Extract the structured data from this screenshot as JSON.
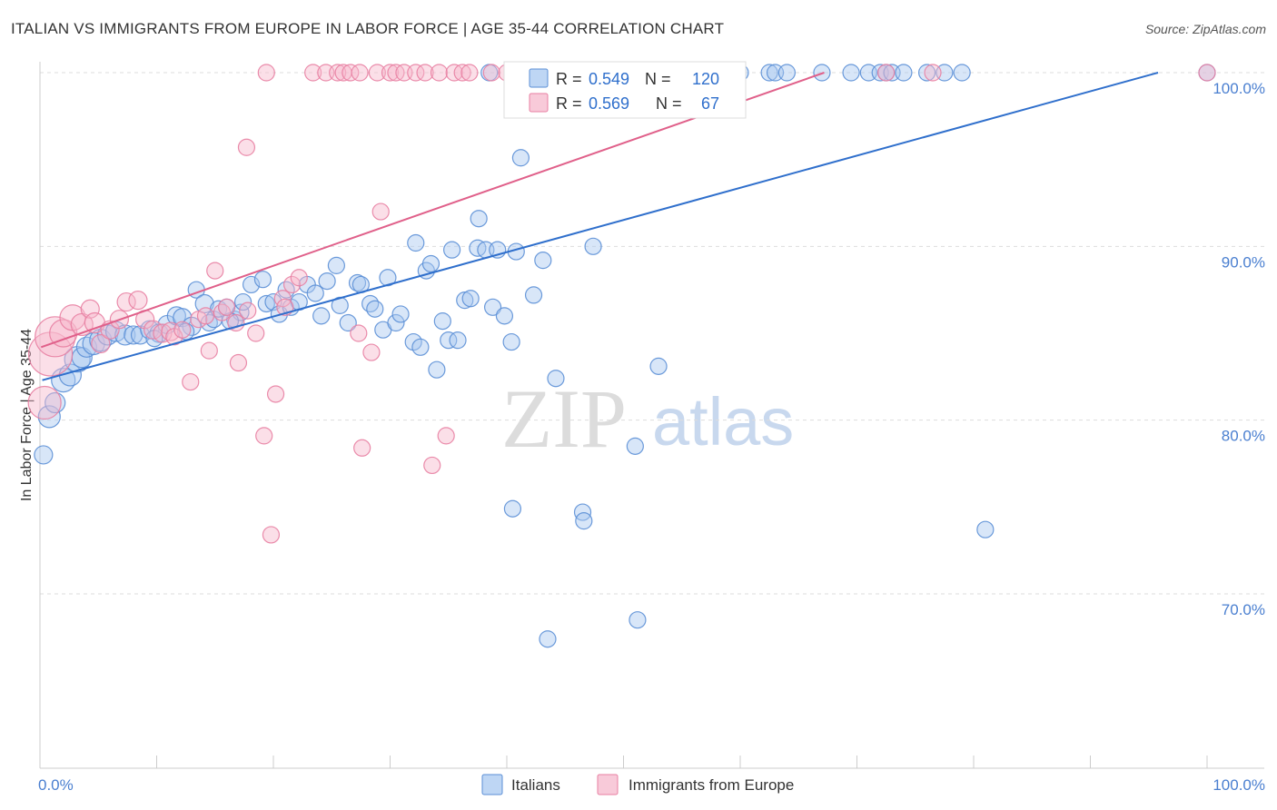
{
  "title": "ITALIAN VS IMMIGRANTS FROM EUROPE IN LABOR FORCE | AGE 35-44 CORRELATION CHART",
  "source": "Source: ZipAtlas.com",
  "watermark": {
    "zip": "ZIP",
    "atlas": "atlas"
  },
  "colors": {
    "blue_fill": "#a8c8f0",
    "blue_stroke": "#5b8fd6",
    "blue_line": "#2f6fcc",
    "pink_fill": "#f6b8cc",
    "pink_stroke": "#e87fa2",
    "pink_line": "#e0608a",
    "tick_text": "#4a7fd0",
    "grid": "#dddddd"
  },
  "legend": {
    "rows": [
      {
        "r_label": "R =",
        "r_value": "0.549",
        "n_label": "N =",
        "n_value": "120",
        "series": "blue"
      },
      {
        "r_label": "R =",
        "r_value": "0.569",
        "n_label": "N =",
        "n_value": "67",
        "series": "pink"
      }
    ]
  },
  "chart_data": {
    "type": "scatter",
    "title": "ITALIAN VS IMMIGRANTS FROM EUROPE IN LABOR FORCE | AGE 35-44 CORRELATION CHART",
    "xlabel": "",
    "ylabel": "In Labor Force | Age 35-44",
    "xlim": [
      0,
      100
    ],
    "ylim": [
      60,
      101.8
    ],
    "x_tick_labels": [
      {
        "value": 0,
        "label": "0.0%"
      },
      {
        "value": 100,
        "label": "100.0%"
      }
    ],
    "y_ticks": [
      {
        "value": 100,
        "label": "100.0%"
      },
      {
        "value": 90,
        "label": "90.0%"
      },
      {
        "value": 80,
        "label": "80.0%"
      },
      {
        "value": 70,
        "label": "70.0%"
      }
    ],
    "series": [
      {
        "name": "Italians",
        "color": "blue",
        "trend": {
          "x0": 0.2,
          "y0": 82.3,
          "x1": 95.8,
          "y1": 100.0
        },
        "points": [
          [
            0.3,
            78.0,
            10
          ],
          [
            0.8,
            80.2,
            12
          ],
          [
            1.3,
            81.0,
            11
          ],
          [
            2.0,
            82.3,
            13
          ],
          [
            2.6,
            82.6,
            12
          ],
          [
            3.2,
            83.5,
            14
          ],
          [
            3.6,
            83.6,
            11
          ],
          [
            4.0,
            84.2,
            11
          ],
          [
            4.6,
            84.4,
            12
          ],
          [
            5.2,
            84.6,
            12
          ],
          [
            5.8,
            84.9,
            11
          ],
          [
            6.5,
            85.1,
            11
          ],
          [
            7.3,
            84.9,
            11
          ],
          [
            8.0,
            84.9,
            10
          ],
          [
            8.6,
            84.9,
            10
          ],
          [
            9.4,
            85.2,
            10
          ],
          [
            10.2,
            85.0,
            10
          ],
          [
            10.9,
            85.5,
            10
          ],
          [
            11.7,
            86.0,
            10
          ],
          [
            12.2,
            85.9,
            10
          ],
          [
            13.0,
            85.4,
            10
          ],
          [
            13.4,
            87.5,
            9
          ],
          [
            14.1,
            86.7,
            10
          ],
          [
            14.5,
            85.6,
            9
          ],
          [
            14.9,
            85.8,
            9
          ],
          [
            15.3,
            86.4,
            9
          ],
          [
            16.0,
            86.5,
            9
          ],
          [
            16.7,
            85.8,
            9
          ],
          [
            17.2,
            86.2,
            9
          ],
          [
            17.4,
            86.8,
            9
          ],
          [
            18.1,
            87.8,
            9
          ],
          [
            19.1,
            88.1,
            9
          ],
          [
            19.4,
            86.7,
            9
          ],
          [
            20.0,
            86.8,
            9
          ],
          [
            20.5,
            86.1,
            9
          ],
          [
            21.1,
            87.5,
            9
          ],
          [
            21.5,
            86.5,
            9
          ],
          [
            22.2,
            86.8,
            9
          ],
          [
            22.9,
            87.8,
            9
          ],
          [
            23.6,
            87.3,
            9
          ],
          [
            24.1,
            86.0,
            9
          ],
          [
            24.6,
            88.0,
            9
          ],
          [
            25.4,
            88.9,
            9
          ],
          [
            25.7,
            86.6,
            9
          ],
          [
            26.4,
            85.6,
            9
          ],
          [
            27.2,
            87.9,
            9
          ],
          [
            27.5,
            87.8,
            9
          ],
          [
            28.3,
            86.7,
            9
          ],
          [
            28.7,
            86.4,
            9
          ],
          [
            29.4,
            85.2,
            9
          ],
          [
            29.8,
            88.2,
            9
          ],
          [
            30.5,
            85.6,
            9
          ],
          [
            30.9,
            86.1,
            9
          ],
          [
            32.0,
            84.5,
            9
          ],
          [
            32.2,
            90.2,
            9
          ],
          [
            32.6,
            84.2,
            9
          ],
          [
            33.1,
            88.6,
            9
          ],
          [
            33.5,
            89.0,
            9
          ],
          [
            34.0,
            82.9,
            9
          ],
          [
            34.5,
            85.7,
            9
          ],
          [
            35.0,
            84.6,
            9
          ],
          [
            35.3,
            89.8,
            9
          ],
          [
            35.8,
            84.6,
            9
          ],
          [
            36.4,
            86.9,
            9
          ],
          [
            36.9,
            87.0,
            9
          ],
          [
            37.6,
            91.6,
            9
          ],
          [
            37.5,
            89.9,
            9
          ],
          [
            38.2,
            89.8,
            9
          ],
          [
            38.8,
            86.5,
            9
          ],
          [
            39.2,
            89.8,
            9
          ],
          [
            39.8,
            86.0,
            9
          ],
          [
            40.4,
            84.5,
            9
          ],
          [
            40.8,
            89.7,
            9
          ],
          [
            41.2,
            95.1,
            9
          ],
          [
            42.3,
            87.2,
            9
          ],
          [
            43.1,
            89.2,
            9
          ],
          [
            44.2,
            82.4,
            9
          ],
          [
            44.0,
            100.0,
            9
          ],
          [
            45.0,
            100.0,
            9
          ],
          [
            46.0,
            100.0,
            9
          ],
          [
            46.5,
            74.7,
            9
          ],
          [
            46.6,
            74.2,
            9
          ],
          [
            47.4,
            90.0,
            9
          ],
          [
            48.5,
            100.0,
            9
          ],
          [
            49.5,
            100.0,
            9
          ],
          [
            50.0,
            100.0,
            9
          ],
          [
            51.0,
            78.5,
            9
          ],
          [
            51.2,
            68.5,
            9
          ],
          [
            52.0,
            100.0,
            9
          ],
          [
            53.0,
            83.1,
            9
          ],
          [
            53.5,
            100.0,
            9
          ],
          [
            54.5,
            100.0,
            9
          ],
          [
            55.5,
            100.0,
            9
          ],
          [
            56.5,
            100.0,
            9
          ],
          [
            57.5,
            100.0,
            9
          ],
          [
            58.5,
            100.0,
            9
          ],
          [
            60.0,
            100.0,
            9
          ],
          [
            62.5,
            100.0,
            9
          ],
          [
            63.0,
            100.0,
            9
          ],
          [
            64.0,
            100.0,
            9
          ],
          [
            67.0,
            100.0,
            9
          ],
          [
            69.5,
            100.0,
            9
          ],
          [
            71.0,
            100.0,
            9
          ],
          [
            72.0,
            100.0,
            9
          ],
          [
            72.5,
            100.0,
            9
          ],
          [
            73.0,
            100.0,
            9
          ],
          [
            74.0,
            100.0,
            9
          ],
          [
            76.0,
            100.0,
            9
          ],
          [
            77.5,
            100.0,
            9
          ],
          [
            79.0,
            100.0,
            9
          ],
          [
            81.0,
            73.7,
            9
          ],
          [
            100.0,
            100.0,
            9
          ],
          [
            38.5,
            100.0,
            9
          ],
          [
            40.5,
            74.9,
            9
          ],
          [
            43.5,
            67.4,
            9
          ],
          [
            12.5,
            85.1,
            9
          ],
          [
            16.3,
            85.7,
            9
          ],
          [
            9.8,
            84.7,
            9
          ]
        ]
      },
      {
        "name": "Immigrants from Europe",
        "color": "pink",
        "trend": {
          "x0": 0.1,
          "y0": 84.2,
          "x1": 67.2,
          "y1": 100.0
        },
        "points": [
          [
            0.4,
            81.0,
            18
          ],
          [
            0.9,
            83.8,
            24
          ],
          [
            1.3,
            84.8,
            22
          ],
          [
            2.0,
            85.0,
            15
          ],
          [
            2.8,
            85.9,
            14
          ],
          [
            3.6,
            85.5,
            12
          ],
          [
            4.3,
            86.4,
            10
          ],
          [
            4.7,
            85.6,
            11
          ],
          [
            5.2,
            84.4,
            10
          ],
          [
            6.0,
            85.2,
            10
          ],
          [
            6.8,
            85.8,
            10
          ],
          [
            7.4,
            86.8,
            10
          ],
          [
            8.4,
            86.9,
            10
          ],
          [
            9.0,
            85.8,
            10
          ],
          [
            9.7,
            85.2,
            10
          ],
          [
            10.5,
            85.0,
            10
          ],
          [
            11.2,
            85.1,
            10
          ],
          [
            11.5,
            84.8,
            9
          ],
          [
            12.2,
            85.2,
            9
          ],
          [
            12.9,
            82.2,
            9
          ],
          [
            13.6,
            85.8,
            9
          ],
          [
            14.2,
            86.0,
            9
          ],
          [
            14.5,
            84.0,
            9
          ],
          [
            15.0,
            88.6,
            9
          ],
          [
            15.6,
            86.2,
            9
          ],
          [
            16.0,
            86.5,
            9
          ],
          [
            16.8,
            85.6,
            9
          ],
          [
            17.0,
            83.3,
            9
          ],
          [
            17.7,
            95.7,
            9
          ],
          [
            17.8,
            86.3,
            9
          ],
          [
            18.5,
            85.0,
            9
          ],
          [
            19.2,
            79.1,
            9
          ],
          [
            19.4,
            100.0,
            9
          ],
          [
            19.8,
            73.4,
            9
          ],
          [
            20.2,
            81.5,
            9
          ],
          [
            20.8,
            87.0,
            9
          ],
          [
            21.6,
            87.8,
            9
          ],
          [
            22.2,
            88.2,
            9
          ],
          [
            23.4,
            100.0,
            9
          ],
          [
            24.5,
            100.0,
            9
          ],
          [
            25.5,
            100.0,
            9
          ],
          [
            26.0,
            100.0,
            9
          ],
          [
            26.6,
            100.0,
            9
          ],
          [
            27.3,
            85.0,
            9
          ],
          [
            27.4,
            100.0,
            9
          ],
          [
            27.6,
            78.4,
            9
          ],
          [
            28.4,
            83.9,
            9
          ],
          [
            28.9,
            100.0,
            9
          ],
          [
            29.2,
            92.0,
            9
          ],
          [
            30.0,
            100.0,
            9
          ],
          [
            30.5,
            100.0,
            9
          ],
          [
            31.2,
            100.0,
            9
          ],
          [
            32.2,
            100.0,
            9
          ],
          [
            33.0,
            100.0,
            9
          ],
          [
            33.6,
            77.4,
            9
          ],
          [
            34.2,
            100.0,
            9
          ],
          [
            34.8,
            79.1,
            9
          ],
          [
            35.5,
            100.0,
            9
          ],
          [
            36.2,
            100.0,
            9
          ],
          [
            36.8,
            100.0,
            9
          ],
          [
            38.7,
            100.0,
            9
          ],
          [
            40.0,
            100.0,
            9
          ],
          [
            41.2,
            100.0,
            9
          ],
          [
            72.5,
            100.0,
            9
          ],
          [
            76.5,
            100.0,
            9
          ],
          [
            100.0,
            100.0,
            9
          ],
          [
            21.0,
            86.5,
            9
          ]
        ]
      }
    ]
  },
  "bottom_legend": [
    {
      "label": "Italians",
      "series": "blue"
    },
    {
      "label": "Immigrants from Europe",
      "series": "pink"
    }
  ]
}
